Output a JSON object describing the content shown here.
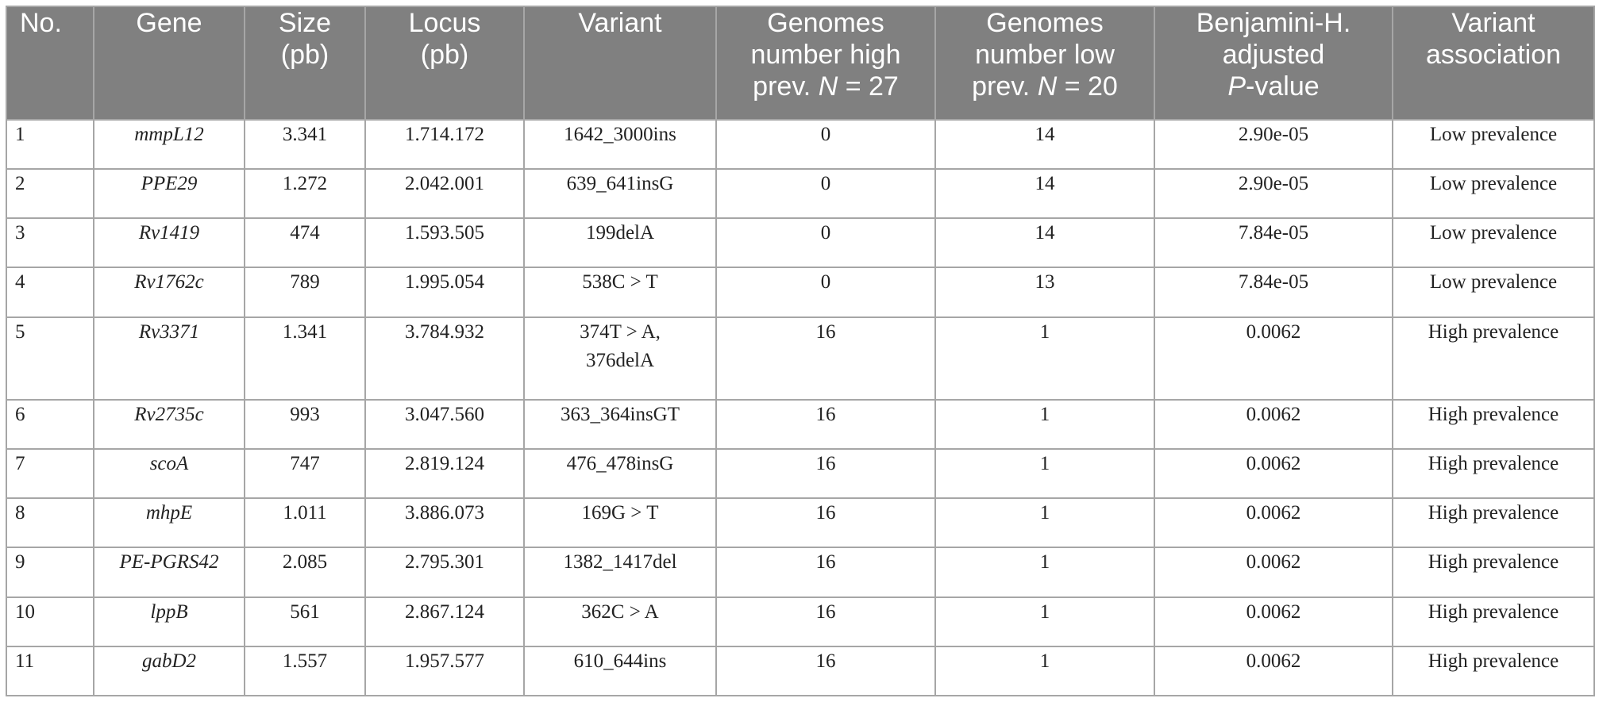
{
  "headers": [
    {
      "lines": [
        "No."
      ]
    },
    {
      "lines": [
        "Gene"
      ]
    },
    {
      "lines": [
        "Size",
        "(pb)"
      ]
    },
    {
      "lines": [
        "Locus",
        "(pb)"
      ]
    },
    {
      "lines": [
        "Variant"
      ]
    },
    {
      "lines": [
        "Genomes",
        "number high",
        "prev. N = 27"
      ]
    },
    {
      "lines": [
        "Genomes",
        "number low",
        "prev. N = 20"
      ]
    },
    {
      "lines": [
        "Benjamini-H.",
        "adjusted",
        "P-value"
      ]
    },
    {
      "lines": [
        "Variant",
        "association"
      ]
    }
  ],
  "rows": [
    {
      "no": "1",
      "gene": "mmpL12",
      "size": "3.341",
      "locus": "1.714.172",
      "variant": [
        "1642_3000ins"
      ],
      "high": "0",
      "low": "14",
      "pvalue": "2.90e-05",
      "association": "Low prevalence"
    },
    {
      "no": "2",
      "gene": "PPE29",
      "size": "1.272",
      "locus": "2.042.001",
      "variant": [
        "639_641insG"
      ],
      "high": "0",
      "low": "14",
      "pvalue": "2.90e-05",
      "association": "Low prevalence"
    },
    {
      "no": "3",
      "gene": "Rv1419",
      "size": "474",
      "locus": "1.593.505",
      "variant": [
        "199delA"
      ],
      "high": "0",
      "low": "14",
      "pvalue": "7.84e-05",
      "association": "Low prevalence"
    },
    {
      "no": "4",
      "gene": "Rv1762c",
      "size": "789",
      "locus": "1.995.054",
      "variant": [
        "538C > T"
      ],
      "high": "0",
      "low": "13",
      "pvalue": "7.84e-05",
      "association": "Low prevalence"
    },
    {
      "no": "5",
      "gene": "Rv3371",
      "size": "1.341",
      "locus": "3.784.932",
      "variant": [
        "374T > A,",
        "376delA"
      ],
      "high": "16",
      "low": "1",
      "pvalue": "0.0062",
      "association": "High prevalence"
    },
    {
      "no": "6",
      "gene": "Rv2735c",
      "size": "993",
      "locus": "3.047.560",
      "variant": [
        "363_364insGT"
      ],
      "high": "16",
      "low": "1",
      "pvalue": "0.0062",
      "association": "High prevalence"
    },
    {
      "no": "7",
      "gene": "scoA",
      "size": "747",
      "locus": "2.819.124",
      "variant": [
        "476_478insG"
      ],
      "high": "16",
      "low": "1",
      "pvalue": "0.0062",
      "association": "High prevalence"
    },
    {
      "no": "8",
      "gene": "mhpE",
      "size": "1.011",
      "locus": "3.886.073",
      "variant": [
        "169G > T"
      ],
      "high": "16",
      "low": "1",
      "pvalue": "0.0062",
      "association": "High prevalence"
    },
    {
      "no": "9",
      "gene": "PE-PGRS42",
      "size": "2.085",
      "locus": "2.795.301",
      "variant": [
        "1382_1417del"
      ],
      "high": "16",
      "low": "1",
      "pvalue": "0.0062",
      "association": "High prevalence"
    },
    {
      "no": "10",
      "gene": "lppB",
      "size": "561",
      "locus": "2.867.124",
      "variant": [
        "362C > A"
      ],
      "high": "16",
      "low": "1",
      "pvalue": "0.0062",
      "association": "High prevalence"
    },
    {
      "no": "11",
      "gene": "gabD2",
      "size": "1.557",
      "locus": "1.957.577",
      "variant": [
        "610_644ins"
      ],
      "high": "16",
      "low": "1",
      "pvalue": "0.0062",
      "association": "High prevalence"
    }
  ]
}
